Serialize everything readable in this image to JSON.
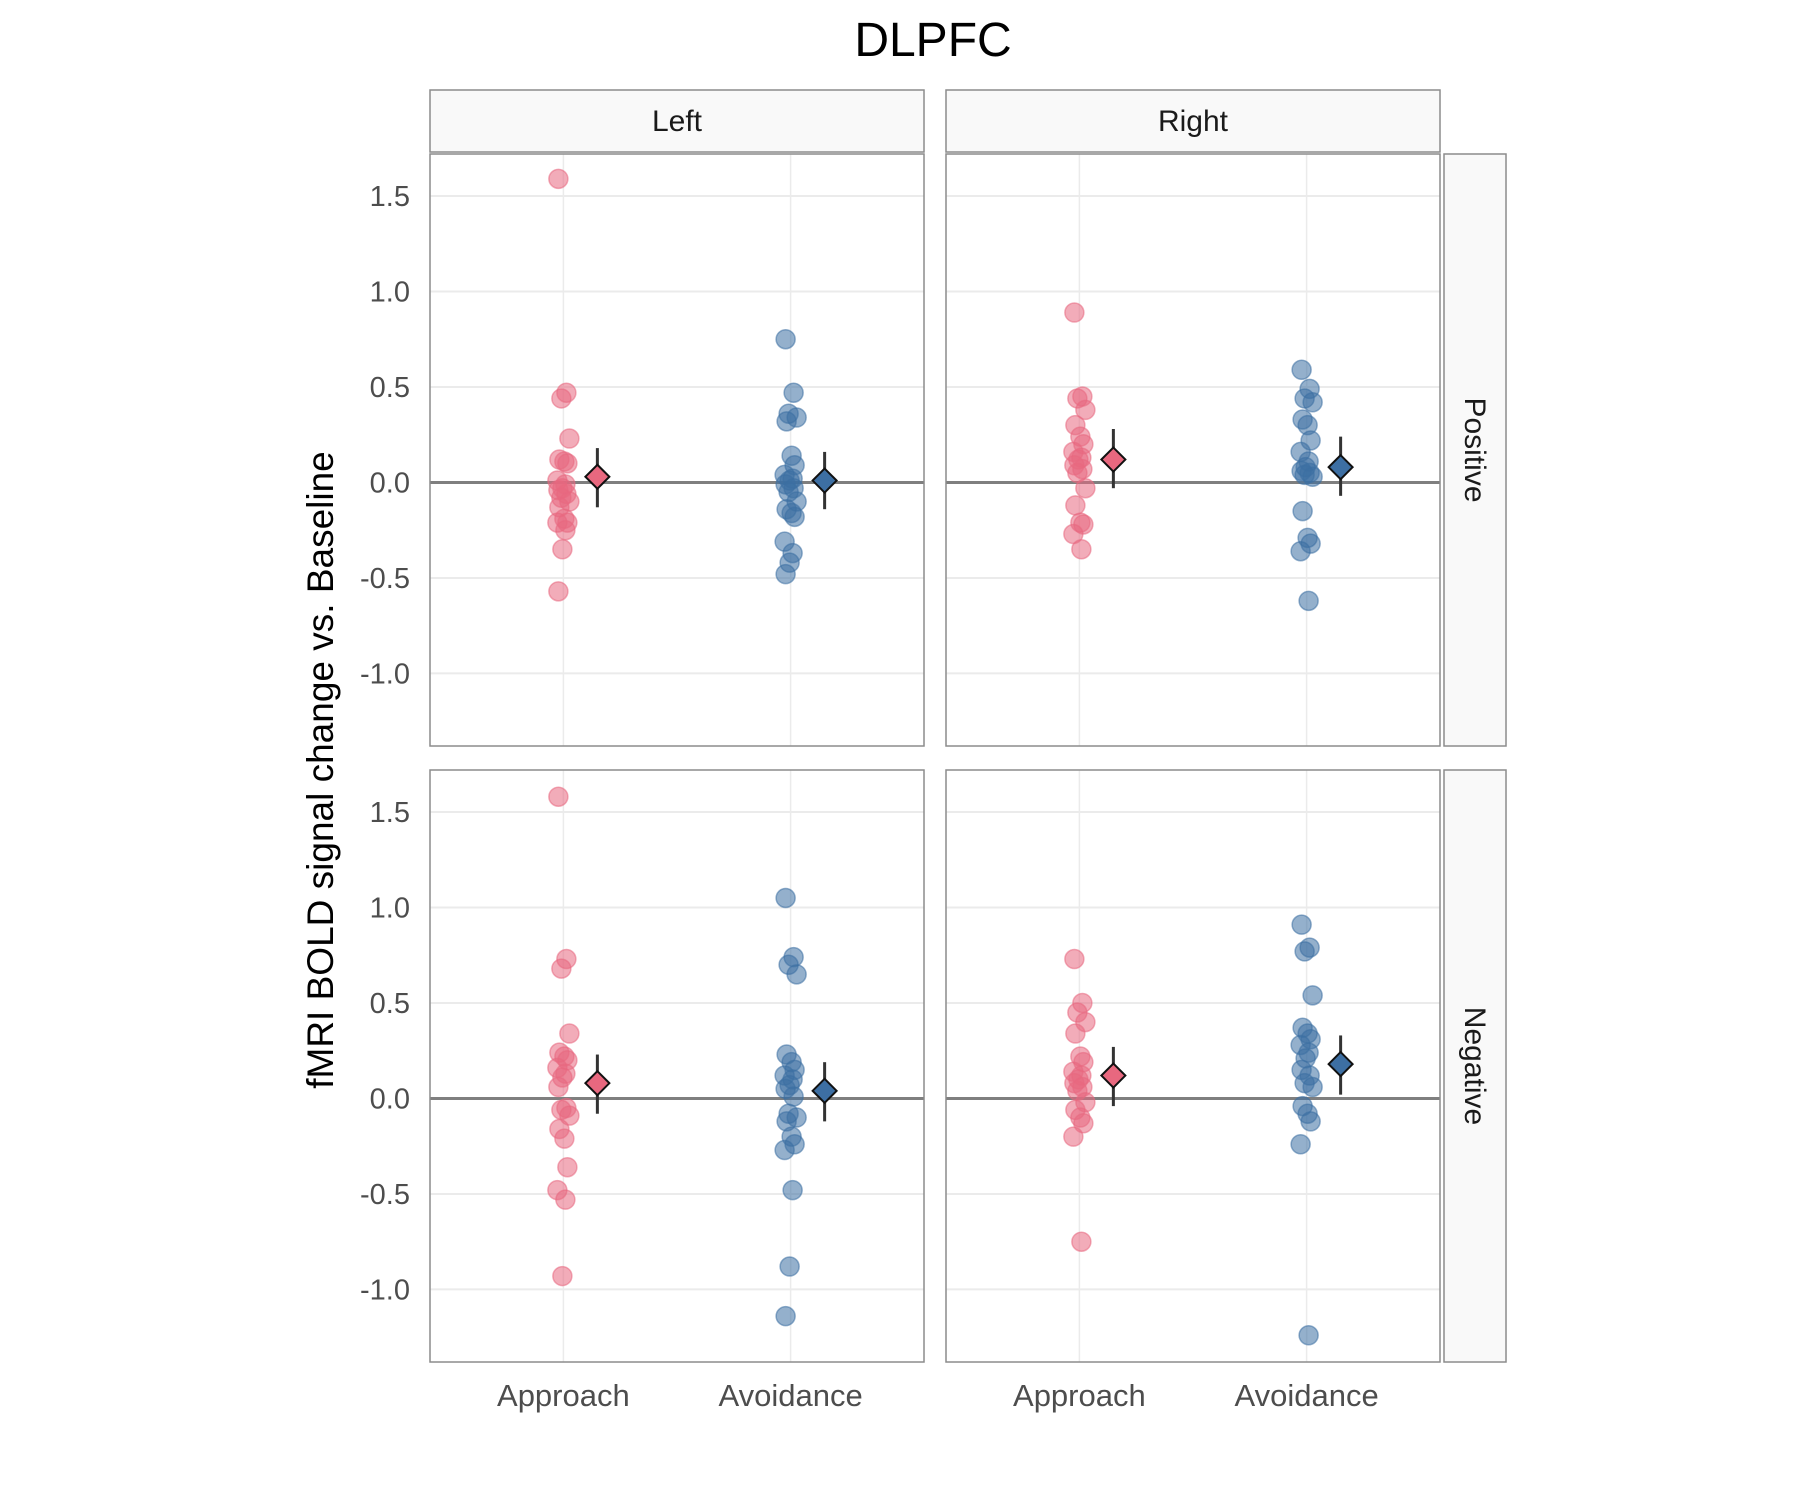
{
  "chart_data": {
    "type": "scatter",
    "title": "DLPFC",
    "ylabel": "fMRI BOLD signal change vs. Baseline",
    "xlabel": "",
    "facet_columns": [
      "Left",
      "Right"
    ],
    "facet_rows": [
      "Positive",
      "Negative"
    ],
    "categories": [
      "Approach",
      "Avoidance"
    ],
    "yticks": [
      -1.0,
      -0.5,
      0.0,
      0.5,
      1.0,
      1.5
    ],
    "ytick_labels": [
      "-1.0",
      "-0.5",
      "0.0",
      "0.5",
      "1.0",
      "1.5"
    ],
    "ylim": [
      -1.38,
      1.72
    ],
    "grid": true,
    "reference_line_y": 0,
    "colors": {
      "Approach": "#e8687f",
      "Avoidance": "#3d6fa3",
      "zero_line": "#7f7f7f",
      "strip_fill": "#f9f9f9",
      "panel_border": "#8c8c8c"
    },
    "panels": [
      {
        "row": "Positive",
        "column": "Left",
        "groups": [
          {
            "category": "Approach",
            "points": [
              1.59,
              0.47,
              0.44,
              0.23,
              0.12,
              0.11,
              0.1,
              0.01,
              -0.01,
              -0.03,
              -0.04,
              -0.06,
              -0.08,
              -0.1,
              -0.13,
              -0.19,
              -0.21,
              -0.21,
              -0.25,
              -0.35,
              -0.57
            ],
            "mean": 0.03,
            "ci": [
              -0.13,
              0.18
            ]
          },
          {
            "category": "Avoidance",
            "points": [
              0.75,
              0.47,
              0.36,
              0.34,
              0.32,
              0.14,
              0.09,
              0.04,
              0.02,
              0.01,
              -0.01,
              -0.03,
              -0.05,
              -0.1,
              -0.14,
              -0.16,
              -0.18,
              -0.31,
              -0.37,
              -0.42,
              -0.48
            ],
            "mean": 0.01,
            "ci": [
              -0.14,
              0.16
            ]
          }
        ]
      },
      {
        "row": "Positive",
        "column": "Right",
        "groups": [
          {
            "category": "Approach",
            "points": [
              0.89,
              0.45,
              0.44,
              0.38,
              0.3,
              0.24,
              0.2,
              0.16,
              0.13,
              0.12,
              0.09,
              0.07,
              0.05,
              -0.03,
              -0.12,
              -0.21,
              -0.22,
              -0.27,
              -0.35
            ],
            "mean": 0.12,
            "ci": [
              -0.03,
              0.28
            ]
          },
          {
            "category": "Avoidance",
            "points": [
              0.59,
              0.49,
              0.44,
              0.42,
              0.33,
              0.3,
              0.22,
              0.16,
              0.11,
              0.08,
              0.06,
              0.05,
              0.04,
              0.03,
              -0.15,
              -0.29,
              -0.32,
              -0.36,
              -0.62
            ],
            "mean": 0.08,
            "ci": [
              -0.07,
              0.24
            ]
          }
        ]
      },
      {
        "row": "Negative",
        "column": "Left",
        "groups": [
          {
            "category": "Approach",
            "points": [
              1.58,
              0.73,
              0.68,
              0.34,
              0.24,
              0.22,
              0.2,
              0.16,
              0.13,
              0.11,
              0.06,
              -0.05,
              -0.06,
              -0.09,
              -0.16,
              -0.21,
              -0.36,
              -0.48,
              -0.53,
              -0.93
            ],
            "mean": 0.08,
            "ci": [
              -0.08,
              0.23
            ]
          },
          {
            "category": "Avoidance",
            "points": [
              1.05,
              0.74,
              0.7,
              0.65,
              0.23,
              0.19,
              0.15,
              0.12,
              0.1,
              0.07,
              0.05,
              0.01,
              -0.08,
              -0.1,
              -0.12,
              -0.2,
              -0.24,
              -0.27,
              -0.48,
              -0.88,
              -1.14
            ],
            "mean": 0.04,
            "ci": [
              -0.12,
              0.19
            ]
          }
        ]
      },
      {
        "row": "Negative",
        "column": "Right",
        "groups": [
          {
            "category": "Approach",
            "points": [
              0.73,
              0.5,
              0.45,
              0.4,
              0.34,
              0.22,
              0.19,
              0.14,
              0.12,
              0.1,
              0.08,
              0.06,
              0.04,
              -0.02,
              -0.06,
              -0.1,
              -0.13,
              -0.2,
              -0.75
            ],
            "mean": 0.12,
            "ci": [
              -0.04,
              0.27
            ]
          },
          {
            "category": "Avoidance",
            "points": [
              0.91,
              0.79,
              0.77,
              0.54,
              0.37,
              0.34,
              0.31,
              0.28,
              0.24,
              0.21,
              0.15,
              0.12,
              0.08,
              0.06,
              -0.04,
              -0.08,
              -0.12,
              -0.24,
              -1.24
            ],
            "mean": 0.18,
            "ci": [
              0.02,
              0.33
            ]
          }
        ]
      }
    ]
  }
}
